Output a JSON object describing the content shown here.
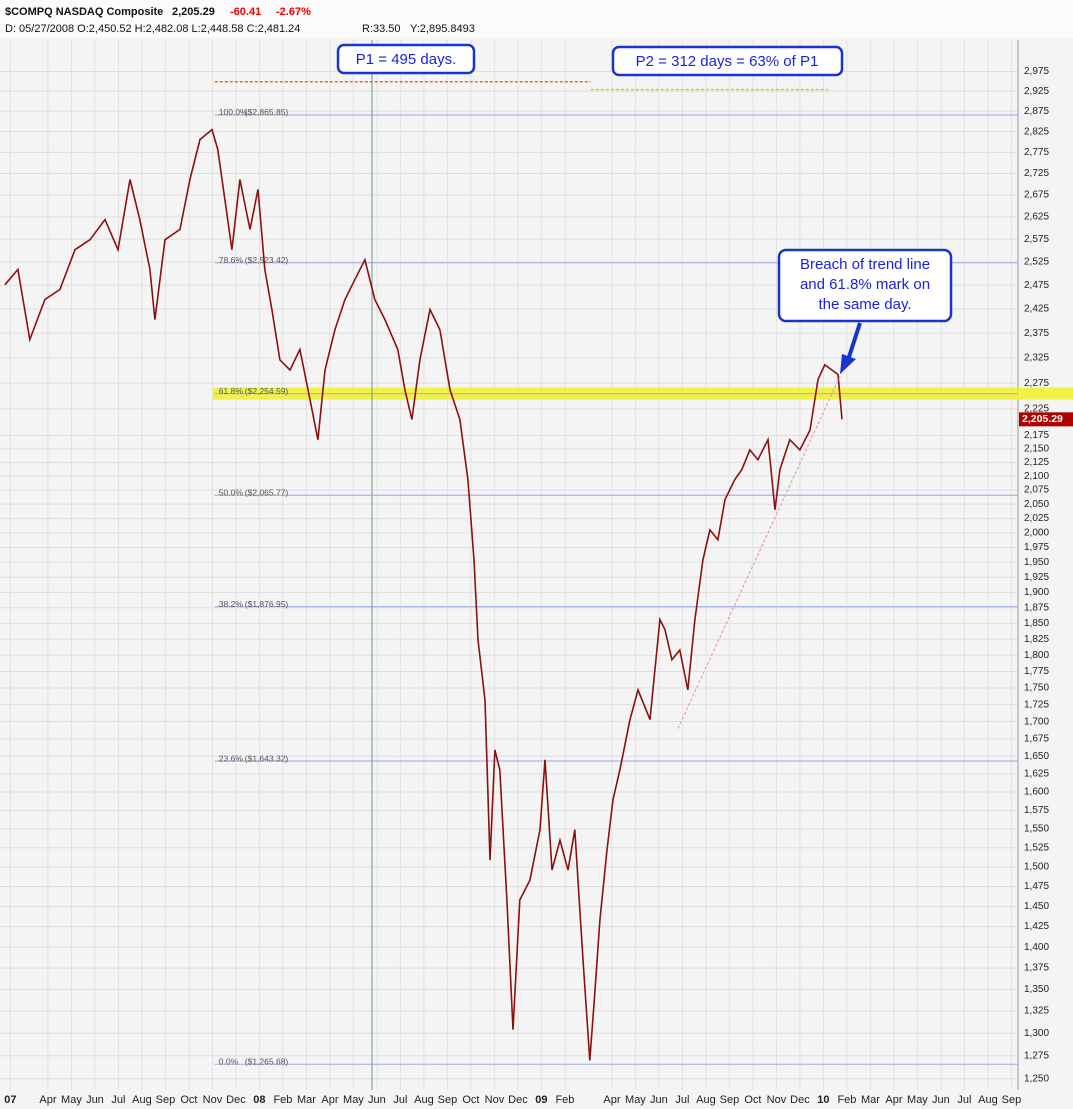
{
  "chart_data": {
    "type": "line",
    "header": {
      "symbol": "$COMPQ NASDAQ Composite",
      "last": "2,205.29",
      "change": "-60.41",
      "change_pct": "-2.67%",
      "cursor": "D: 05/27/2008 O:2,450.52 H:2,482.08 L:2,448.58 C:2,481.24",
      "r": "R:33.50",
      "y": "Y:2,895.8493"
    },
    "color": "#8b1010",
    "x": [
      1.17,
      1.72,
      2.23,
      2.87,
      3.51,
      4.15,
      4.79,
      5.43,
      5.98,
      6.49,
      6.91,
      7.34,
      7.55,
      7.98,
      8.62,
      9.04,
      9.47,
      9.98,
      10.23,
      10.53,
      10.83,
      11.17,
      11.6,
      11.94,
      12.23,
      12.53,
      12.87,
      13.3,
      13.72,
      14.15,
      14.49,
      14.79,
      15.21,
      15.64,
      16.06,
      16.49,
      16.91,
      17.34,
      17.89,
      18.19,
      18.49,
      18.83,
      19.26,
      19.68,
      20.11,
      20.53,
      20.87,
      21.13,
      21.3,
      21.6,
      21.81,
      22.02,
      22.23,
      22.53,
      22.79,
      23.08,
      23.51,
      23.94,
      24.15,
      24.45,
      24.79,
      25.13,
      25.42,
      25.77,
      26.06,
      26.28,
      26.49,
      26.79,
      27.04,
      27.34,
      27.77,
      28.11,
      28.62,
      29.04,
      29.26,
      29.55,
      29.89,
      30.23,
      30.53,
      30.87,
      31.17,
      31.51,
      31.81,
      32.23,
      32.53,
      32.87,
      33.21,
      33.64,
      33.94,
      34.15,
      34.57,
      35.0,
      35.43,
      35.77,
      36.06,
      36.36,
      36.62,
      36.79
    ],
    "values": [
      2476,
      2509,
      2362,
      2445,
      2466,
      2552,
      2574,
      2619,
      2552,
      2711,
      2619,
      2509,
      2403,
      2574,
      2597,
      2711,
      2806,
      2830,
      2782,
      2664,
      2552,
      2711,
      2597,
      2688,
      2509,
      2424,
      2321,
      2301,
      2342,
      2243,
      2167,
      2301,
      2382,
      2445,
      2487,
      2530,
      2445,
      2403,
      2342,
      2262,
      2205,
      2321,
      2424,
      2382,
      2262,
      2205,
      2094,
      1954,
      1824,
      1732,
      1509,
      1659,
      1631,
      1458,
      1304,
      1458,
      1483,
      1549,
      1645,
      1496,
      1535,
      1496,
      1549,
      1385,
      1270,
      1349,
      1433,
      1522,
      1589,
      1631,
      1703,
      1747,
      1703,
      1856,
      1840,
      1793,
      1808,
      1747,
      1856,
      1954,
      2005,
      1988,
      2058,
      2094,
      2112,
      2148,
      2130,
      2167,
      2040,
      2112,
      2167,
      2148,
      2185,
      2282,
      2311,
      2301,
      2292,
      2205.29
    ],
    "log_scale": true,
    "grid": true,
    "xlim": [
      0.96,
      44.28
    ],
    "ylim": [
      1238,
      3110
    ],
    "xticks": [
      {
        "value": 1.4,
        "label": "07"
      },
      {
        "value": 3,
        "label": "Apr"
      },
      {
        "value": 4,
        "label": "May"
      },
      {
        "value": 5,
        "label": "Jun"
      },
      {
        "value": 6,
        "label": "Jul"
      },
      {
        "value": 7,
        "label": "Aug"
      },
      {
        "value": 8,
        "label": "Sep"
      },
      {
        "value": 9,
        "label": "Oct"
      },
      {
        "value": 10,
        "label": "Nov"
      },
      {
        "value": 11,
        "label": "Dec"
      },
      {
        "value": 12,
        "label": "08"
      },
      {
        "value": 13,
        "label": "Feb"
      },
      {
        "value": 14,
        "label": "Mar"
      },
      {
        "value": 15,
        "label": "Apr"
      },
      {
        "value": 16,
        "label": "May"
      },
      {
        "value": 17,
        "label": "Jun"
      },
      {
        "value": 18,
        "label": "Jul"
      },
      {
        "value": 19,
        "label": "Aug"
      },
      {
        "value": 20,
        "label": "Sep"
      },
      {
        "value": 21,
        "label": "Oct"
      },
      {
        "value": 22,
        "label": "Nov"
      },
      {
        "value": 23,
        "label": "Dec"
      },
      {
        "value": 24,
        "label": "09"
      },
      {
        "value": 25,
        "label": "Feb"
      },
      {
        "value": 27,
        "label": "Apr"
      },
      {
        "value": 28,
        "label": "May"
      },
      {
        "value": 29,
        "label": "Jun"
      },
      {
        "value": 30,
        "label": "Jul"
      },
      {
        "value": 31,
        "label": "Aug"
      },
      {
        "value": 32,
        "label": "Sep"
      },
      {
        "value": 33,
        "label": "Oct"
      },
      {
        "value": 34,
        "label": "Nov"
      },
      {
        "value": 35,
        "label": "Dec"
      },
      {
        "value": 36,
        "label": "10"
      },
      {
        "value": 37,
        "label": "Feb"
      },
      {
        "value": 38,
        "label": "Mar"
      },
      {
        "value": 39,
        "label": "Apr"
      },
      {
        "value": 40,
        "label": "May"
      },
      {
        "value": 41,
        "label": "Jun"
      },
      {
        "value": 42,
        "label": "Jul"
      },
      {
        "value": 43,
        "label": "Aug"
      },
      {
        "value": 44,
        "label": "Sep"
      }
    ],
    "yticks": [
      {
        "value": 1250,
        "label": "1,250"
      },
      {
        "value": 1275,
        "label": "1,275"
      },
      {
        "value": 1300,
        "label": "1,300"
      },
      {
        "value": 1325,
        "label": "1,325"
      },
      {
        "value": 1350,
        "label": "1,350"
      },
      {
        "value": 1375,
        "label": "1,375"
      },
      {
        "value": 1400,
        "label": "1,400"
      },
      {
        "value": 1425,
        "label": "1,425"
      },
      {
        "value": 1450,
        "label": "1,450"
      },
      {
        "value": 1475,
        "label": "1,475"
      },
      {
        "value": 1500,
        "label": "1,500"
      },
      {
        "value": 1525,
        "label": "1,525"
      },
      {
        "value": 1550,
        "label": "1,550"
      },
      {
        "value": 1575,
        "label": "1,575"
      },
      {
        "value": 1600,
        "label": "1,600"
      },
      {
        "value": 1625,
        "label": "1,625"
      },
      {
        "value": 1650,
        "label": "1,650"
      },
      {
        "value": 1675,
        "label": "1,675"
      },
      {
        "value": 1700,
        "label": "1,700"
      },
      {
        "value": 1725,
        "label": "1,725"
      },
      {
        "value": 1750,
        "label": "1,750"
      },
      {
        "value": 1775,
        "label": "1,775"
      },
      {
        "value": 1800,
        "label": "1,800"
      },
      {
        "value": 1825,
        "label": "1,825"
      },
      {
        "value": 1850,
        "label": "1,850"
      },
      {
        "value": 1875,
        "label": "1,875"
      },
      {
        "value": 1900,
        "label": "1,900"
      },
      {
        "value": 1925,
        "label": "1,925"
      },
      {
        "value": 1950,
        "label": "1,950"
      },
      {
        "value": 1975,
        "label": "1,975"
      },
      {
        "value": 2000,
        "label": "2,000"
      },
      {
        "value": 2025,
        "label": "2,025"
      },
      {
        "value": 2050,
        "label": "2,050"
      },
      {
        "value": 2075,
        "label": "2,075"
      },
      {
        "value": 2100,
        "label": "2,100"
      },
      {
        "value": 2125,
        "label": "2,125"
      },
      {
        "value": 2150,
        "label": "2,150"
      },
      {
        "value": 2175,
        "label": "2,175"
      },
      {
        "value": 2225,
        "label": "2,225"
      },
      {
        "value": 2275,
        "label": "2,275"
      },
      {
        "value": 2325,
        "label": "2,325"
      },
      {
        "value": 2375,
        "label": "2,375"
      },
      {
        "value": 2425,
        "label": "2,425"
      },
      {
        "value": 2475,
        "label": "2,475"
      },
      {
        "value": 2525,
        "label": "2,525"
      },
      {
        "value": 2575,
        "label": "2,575"
      },
      {
        "value": 2625,
        "label": "2,625"
      },
      {
        "value": 2675,
        "label": "2,675"
      },
      {
        "value": 2725,
        "label": "2,725"
      },
      {
        "value": 2775,
        "label": "2,775"
      },
      {
        "value": 2825,
        "label": "2,825"
      },
      {
        "value": 2875,
        "label": "2,875"
      },
      {
        "value": 2925,
        "label": "2,925"
      },
      {
        "value": 2975,
        "label": "2,975"
      }
    ],
    "last_value": 2205.29,
    "fib_levels": [
      {
        "value": 2865.85,
        "label": "100.0%",
        "price": "($2,865.85)"
      },
      {
        "value": 2523.42,
        "label": "78.6%",
        "price": "($2,523.42)"
      },
      {
        "value": 2254.59,
        "label": "61.8%",
        "price": "($2,254.59)",
        "highlight": "#f0f028"
      },
      {
        "value": 2065.77,
        "label": "50.0%",
        "price": "($2,065.77)"
      },
      {
        "value": 1876.95,
        "label": "38.2%",
        "price": "($1,876.95)"
      },
      {
        "value": 1643.32,
        "label": "23.6%",
        "price": "($1,643.32)"
      },
      {
        "value": 1265.68,
        "label": "0.0%",
        "price": "($1,265.68)"
      }
    ],
    "fib_start_x": 10.1,
    "reference_lines": [
      {
        "color": "#e07020",
        "x": [
          10.1,
          26.1
        ],
        "y": [
          2949,
          2949
        ]
      },
      {
        "color": "#b8d030",
        "x": [
          26.1,
          36.2
        ],
        "y": [
          2929,
          2929
        ]
      }
    ],
    "cursor_x": 16.79,
    "trend_line": {
      "color": "#e8a0a8",
      "x": [
        29.81,
        36.79
      ],
      "y": [
        1690,
        2297
      ]
    },
    "annotations": [
      {
        "text": "P1 = 495 days."
      },
      {
        "text": "P2 = 312 days = 63% of P1"
      },
      {
        "lines": [
          "Breach of trend line",
          "and 61.8% mark on",
          "the same day."
        ]
      }
    ]
  }
}
